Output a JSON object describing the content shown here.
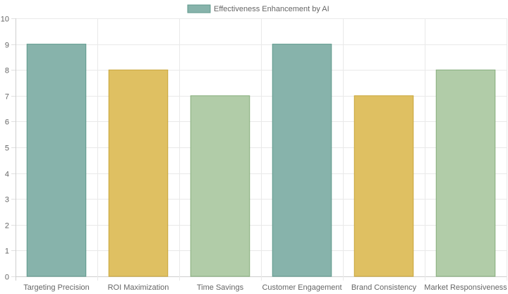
{
  "chart_data": {
    "type": "bar",
    "categories": [
      "Targeting Precision",
      "ROI Maximization",
      "Time Savings",
      "Customer Engagement",
      "Brand Consistency",
      "Market Responsiveness"
    ],
    "series": [
      {
        "name": "Effectiveness Enhancement by AI",
        "values": [
          9,
          8,
          7,
          9,
          7,
          8
        ]
      }
    ],
    "bar_fill_colors": [
      "#87b3ab",
      "#dfc062",
      "#b1cca8",
      "#87b3ab",
      "#dfc062",
      "#b1cca8"
    ],
    "bar_border_colors": [
      "#5f9a8d",
      "#c9a53a",
      "#86ad7c",
      "#5f9a8d",
      "#c9a53a",
      "#86ad7c"
    ],
    "legend_swatch_color": "#87b3ab",
    "legend_position": "top",
    "y_ticks": [
      "0",
      "1",
      "2",
      "3",
      "4",
      "5",
      "6",
      "7",
      "8",
      "9",
      "10"
    ],
    "ylim": [
      0,
      10
    ],
    "grid": true,
    "title": "",
    "xlabel": "",
    "ylabel": ""
  }
}
